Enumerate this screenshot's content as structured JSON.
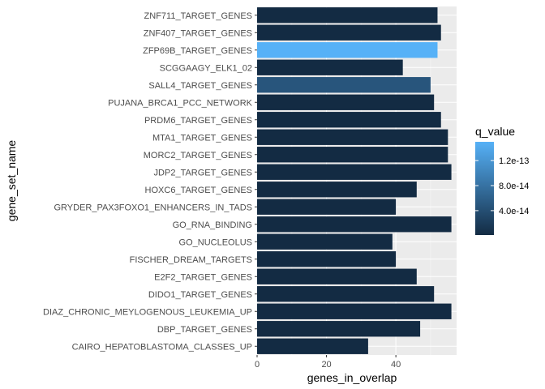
{
  "chart_data": {
    "type": "bar",
    "orientation": "horizontal",
    "xlabel": "genes_in_overlap",
    "ylabel": "gene_set_name",
    "xlim": [
      0,
      57.5
    ],
    "x_ticks": [
      0,
      20,
      40
    ],
    "grid": true,
    "legend_position": "right",
    "categories": [
      "ZNF711_TARGET_GENES",
      "ZNF407_TARGET_GENES",
      "ZFP69B_TARGET_GENES",
      "SCGGAAGY_ELK1_02",
      "SALL4_TARGET_GENES",
      "PUJANA_BRCA1_PCC_NETWORK",
      "PRDM6_TARGET_GENES",
      "MTA1_TARGET_GENES",
      "MORC2_TARGET_GENES",
      "JDP2_TARGET_GENES",
      "HOXC6_TARGET_GENES",
      "GRYDER_PAX3FOXO1_ENHANCERS_IN_TADS",
      "GO_RNA_BINDING",
      "GO_NUCLEOLUS",
      "FISCHER_DREAM_TARGETS",
      "E2F2_TARGET_GENES",
      "DIDO1_TARGET_GENES",
      "DIAZ_CHRONIC_MEYLOGENOUS_LEUKEMIA_UP",
      "DBP_TARGET_GENES",
      "CAIRO_HEPATOBLASTOMA_CLASSES_UP"
    ],
    "values": [
      52,
      53,
      52,
      42,
      50,
      51,
      53,
      55,
      55,
      56,
      46,
      40,
      56,
      39,
      40,
      46,
      51,
      56,
      47,
      32
    ],
    "q_values": [
      1e-15,
      1e-15,
      1.5e-13,
      1e-15,
      4.8e-14,
      1e-15,
      1e-15,
      1e-15,
      1e-15,
      1e-15,
      1e-15,
      1e-15,
      1e-15,
      1e-15,
      1e-15,
      1e-15,
      1e-15,
      1e-15,
      1e-15,
      1e-15
    ],
    "color_scale": {
      "title": "q_value",
      "domain": [
        1e-15,
        1.5e-13
      ],
      "low_color": "#132B43",
      "high_color": "#56B1F7",
      "ticks": [
        4e-14,
        8e-14,
        1.2e-13
      ],
      "tick_labels": [
        "4.0e-14",
        "8.0e-14",
        "1.2e-13"
      ]
    },
    "colors": {
      "panel_background": "#EBEBEB",
      "grid_major": "#FFFFFF",
      "grid_minor": "#F5F5F5"
    }
  }
}
